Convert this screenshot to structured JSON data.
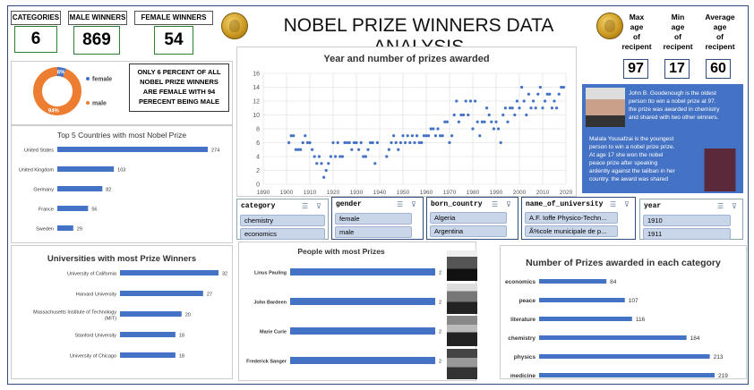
{
  "title": "NOBEL PRIZE WINNERS DATA ANALYSIS",
  "kpis": {
    "categories_label": "CATEGORIES",
    "categories_value": "6",
    "male_label": "MALE WINNERS",
    "male_value": "869",
    "female_label": "FEMALE  WINNERS",
    "female_value": "54"
  },
  "age": {
    "max_label": [
      "Max",
      "age",
      "of",
      "recipent"
    ],
    "max_value": "97",
    "min_label": [
      "Min",
      "age",
      "of",
      "recipent"
    ],
    "min_value": "17",
    "avg_label": [
      "Average",
      "age",
      "of",
      "recipent"
    ],
    "avg_value": "60"
  },
  "gender_note": [
    "ONLY 6 PERCENT OF ALL",
    "NOBEL PRIZE WINNERS",
    "ARE FEMALE WITH 94",
    "PERECENT BEING MALE"
  ],
  "info": {
    "goodenough": [
      "John B. Goodenough is the oldest",
      "person tto win a nobel prize at 97.",
      "the prize was awarded in chemistry",
      "and shared with two other winners."
    ],
    "malala": [
      "Malala Yousafzai is the youngest",
      "person to win a nobel prize prize.",
      "At age 17 she won the nobel",
      "peace prize after speaking",
      "ardently against the taliban in her",
      "country. the award was shared"
    ]
  },
  "slicers": {
    "category": {
      "header": "category",
      "items": [
        "chemistry",
        "economics"
      ]
    },
    "gender": {
      "header": "gender",
      "items": [
        "female",
        "male"
      ]
    },
    "born_country": {
      "header": "born_country",
      "items": [
        "Algeria",
        "Argentina"
      ]
    },
    "university": {
      "header": "name_of_university",
      "items": [
        "A.F. Ioffe Physico-Techn...",
        "Ã%cole municipale de p..."
      ]
    },
    "year": {
      "header": "year",
      "items": [
        "1910",
        "1911"
      ]
    }
  },
  "colors": {
    "bar": "#4472c4",
    "female": "#4472c4",
    "male": "#ed7d31",
    "info_bg": "#4472c4",
    "kpi_border": "#2e7d32"
  },
  "chart_data": [
    {
      "type": "pie",
      "id": "gender_donut",
      "labels": [
        "female",
        "male"
      ],
      "values": [
        6,
        94
      ],
      "data_labels": [
        "6%",
        "94%"
      ],
      "legend_position": "right"
    },
    {
      "type": "scatter",
      "id": "year_prizes",
      "title": "Year and number of prizes awarded",
      "xlim": [
        1890,
        2020
      ],
      "ylim": [
        0,
        16
      ],
      "xticks": [
        1890,
        1900,
        1910,
        1920,
        1930,
        1940,
        1950,
        1960,
        1970,
        1980,
        1990,
        2000,
        2010,
        2020
      ],
      "yticks": [
        0,
        2,
        4,
        6,
        8,
        10,
        12,
        14,
        16
      ],
      "grid": true,
      "x": [
        1901,
        1902,
        1903,
        1904,
        1905,
        1906,
        1907,
        1908,
        1909,
        1910,
        1911,
        1912,
        1913,
        1914,
        1915,
        1916,
        1917,
        1918,
        1919,
        1920,
        1921,
        1922,
        1923,
        1924,
        1925,
        1926,
        1927,
        1928,
        1929,
        1930,
        1931,
        1932,
        1933,
        1934,
        1935,
        1936,
        1937,
        1938,
        1939,
        1943,
        1944,
        1945,
        1946,
        1947,
        1948,
        1949,
        1950,
        1951,
        1952,
        1953,
        1954,
        1955,
        1956,
        1957,
        1958,
        1959,
        1960,
        1961,
        1962,
        1963,
        1964,
        1965,
        1966,
        1967,
        1968,
        1969,
        1970,
        1971,
        1972,
        1973,
        1974,
        1975,
        1976,
        1977,
        1978,
        1979,
        1980,
        1981,
        1982,
        1983,
        1984,
        1985,
        1986,
        1987,
        1988,
        1989,
        1990,
        1991,
        1992,
        1993,
        1994,
        1995,
        1996,
        1997,
        1998,
        1999,
        2000,
        2001,
        2002,
        2003,
        2004,
        2005,
        2006,
        2007,
        2008,
        2009,
        2010,
        2011,
        2012,
        2013,
        2014,
        2015,
        2016,
        2017,
        2018,
        2019
      ],
      "y": [
        6,
        7,
        7,
        5,
        5,
        5,
        6,
        7,
        6,
        6,
        5,
        4,
        3,
        4,
        3,
        1,
        2,
        3,
        4,
        6,
        4,
        6,
        4,
        4,
        6,
        6,
        6,
        5,
        6,
        6,
        5,
        6,
        4,
        4,
        5,
        6,
        6,
        3,
        6,
        4,
        5,
        6,
        7,
        6,
        5,
        6,
        7,
        6,
        7,
        6,
        7,
        6,
        7,
        6,
        6,
        7,
        7,
        7,
        8,
        8,
        7,
        8,
        7,
        7,
        9,
        9,
        6,
        7,
        10,
        12,
        9,
        10,
        10,
        12,
        10,
        12,
        8,
        12,
        9,
        7,
        9,
        9,
        11,
        10,
        9,
        8,
        9,
        8,
        6,
        10,
        11,
        9,
        11,
        11,
        10,
        12,
        11,
        14,
        12,
        10,
        13,
        11,
        12,
        11,
        13,
        14,
        11,
        12,
        13,
        13,
        11,
        12,
        11,
        13,
        14,
        14
      ]
    },
    {
      "type": "bar",
      "id": "top_countries",
      "title": "Top 5 Countries with most Nobel Prize",
      "categories": [
        "United States",
        "United Kingdom",
        "Germany",
        "France",
        "Sweden"
      ],
      "values": [
        274,
        103,
        82,
        56,
        29
      ]
    },
    {
      "type": "bar",
      "id": "top_universities",
      "title": "Universities with most Prize Winners",
      "categories": [
        "University of California",
        "Harvard University",
        "Massachusetts Institute of Technology (MIT)",
        "Stanford University",
        "University of Chicago"
      ],
      "values": [
        32,
        27,
        20,
        18,
        18
      ]
    },
    {
      "type": "bar",
      "id": "people_prizes",
      "title": "People with most Prizes",
      "categories": [
        "Linus Pauling",
        "John Bardeen",
        "Marie Curie",
        "Frederick Sanger"
      ],
      "values": [
        2,
        2,
        2,
        2
      ]
    },
    {
      "type": "bar",
      "id": "category_prizes",
      "title": "Number of Prizes awarded in each category",
      "categories": [
        "economics",
        "peace",
        "literature",
        "chemistry",
        "physics",
        "medicine"
      ],
      "values": [
        84,
        107,
        116,
        184,
        213,
        219
      ]
    }
  ]
}
